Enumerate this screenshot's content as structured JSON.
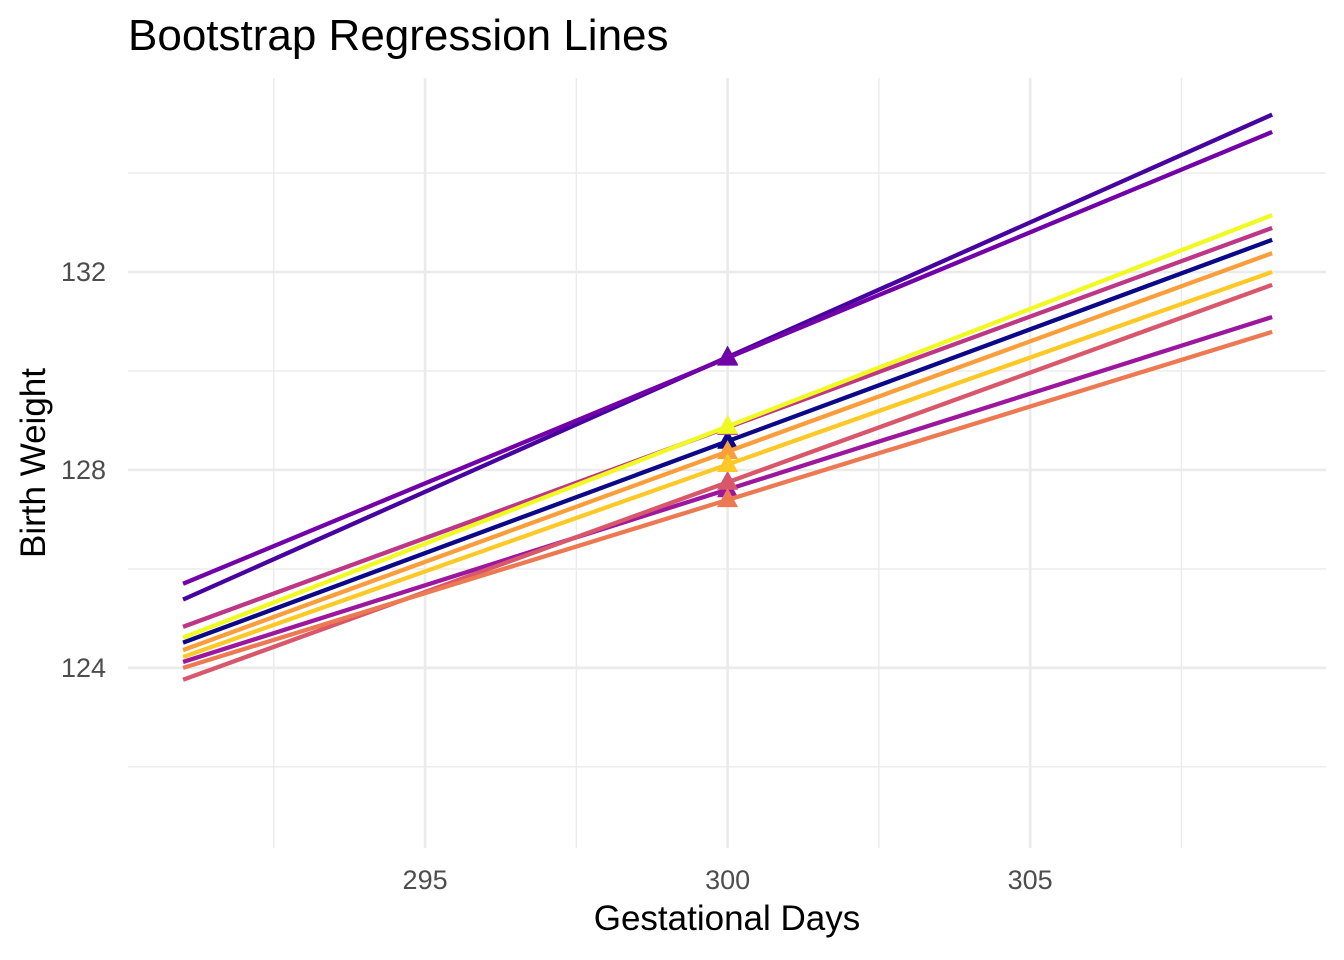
{
  "chart_data": {
    "type": "line",
    "title": "Bootstrap Regression Lines",
    "xlabel": "Gestational Days",
    "ylabel": "Birth Weight",
    "xlim": [
      290.09,
      309.89
    ],
    "ylim": [
      120.36,
      135.92
    ],
    "x_ticks": [
      295,
      300,
      305
    ],
    "y_ticks": [
      124,
      128,
      132
    ],
    "x_minor_gridlines": [
      292.5,
      297.5,
      302.5,
      307.5
    ],
    "y_minor_gridlines": [
      122,
      126,
      130,
      134
    ],
    "grid": "on",
    "legend_position": "none",
    "background_color": "#FFFFFF",
    "grid_color": "#EBEBEB",
    "axis_text_color": "#4D4D4D",
    "marker_shape": "triangle",
    "marker_x": 300,
    "series": [
      {
        "name": "navy",
        "color": "#0D0887",
        "x": [
          291,
          309
        ],
        "y": [
          124.51,
          132.65
        ],
        "point": {
          "x": 300,
          "y": 128.58
        }
      },
      {
        "name": "indigo",
        "color": "#47039F",
        "x": [
          291,
          309
        ],
        "y": [
          125.38,
          135.18
        ],
        "point": {
          "x": 300,
          "y": 130.28
        }
      },
      {
        "name": "violet",
        "color": "#7301A8",
        "x": [
          291,
          309
        ],
        "y": [
          125.7,
          134.83
        ],
        "point": {
          "x": 300,
          "y": 130.26
        }
      },
      {
        "name": "purple",
        "color": "#9C179E",
        "x": [
          291,
          309
        ],
        "y": [
          124.12,
          131.09
        ],
        "point": {
          "x": 300,
          "y": 127.6
        }
      },
      {
        "name": "magenta",
        "color": "#BD3786",
        "x": [
          291,
          309
        ],
        "y": [
          124.83,
          132.89
        ],
        "point": {
          "x": 300,
          "y": 128.86
        }
      },
      {
        "name": "crimson",
        "color": "#D8576B",
        "x": [
          291,
          309
        ],
        "y": [
          123.76,
          131.74
        ],
        "point": {
          "x": 300,
          "y": 127.75
        }
      },
      {
        "name": "salmon",
        "color": "#ED7953",
        "x": [
          291,
          309
        ],
        "y": [
          124.0,
          130.79
        ],
        "point": {
          "x": 300,
          "y": 127.4
        }
      },
      {
        "name": "orange",
        "color": "#FA9E3B",
        "x": [
          291,
          309
        ],
        "y": [
          124.36,
          132.38
        ],
        "point": {
          "x": 300,
          "y": 128.37
        }
      },
      {
        "name": "gold",
        "color": "#FDC926",
        "x": [
          291,
          309
        ],
        "y": [
          124.22,
          132.0
        ],
        "point": {
          "x": 300,
          "y": 128.11
        }
      },
      {
        "name": "yellow",
        "color": "#F0F921",
        "x": [
          291,
          309
        ],
        "y": [
          124.61,
          133.15
        ],
        "point": {
          "x": 300,
          "y": 128.88
        }
      }
    ]
  }
}
